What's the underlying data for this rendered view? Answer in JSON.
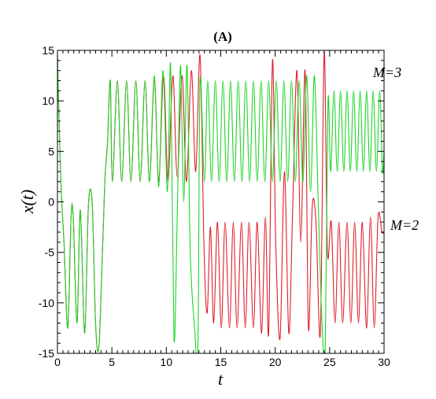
{
  "chart_data": {
    "type": "line",
    "title": "(A)",
    "xlabel": "t",
    "ylabel": "x(t)",
    "xlim": [
      0,
      30
    ],
    "ylim": [
      -15,
      15
    ],
    "xticks": [
      0,
      5,
      10,
      15,
      20,
      25,
      30
    ],
    "yticks": [
      -15,
      -10,
      -5,
      0,
      5,
      10,
      15
    ],
    "grid": false,
    "series": [
      {
        "name": "M=2",
        "color": "#dd1f2a",
        "x": [
          0,
          0.15,
          0.35,
          0.6,
          0.95,
          1.25,
          1.45,
          1.8,
          2.1,
          2.5,
          2.85,
          3.2,
          3.5,
          3.8,
          4.1,
          4.35,
          4.6,
          4.85,
          5.05,
          5.5,
          5.9,
          6.35,
          6.75,
          7.2,
          7.6,
          8.05,
          8.45,
          8.9,
          9.3,
          9.75,
          10.15,
          10.6,
          11.0,
          11.45,
          11.85,
          12.3,
          12.7,
          13.1,
          13.45,
          13.75,
          14.05,
          14.35,
          14.7,
          15.05,
          15.4,
          15.8,
          16.15,
          16.5,
          16.9,
          17.25,
          17.6,
          18.0,
          18.35,
          18.75,
          19.1,
          19.4,
          19.75,
          20.05,
          20.45,
          20.85,
          21.25,
          21.6,
          22.0,
          22.35,
          22.75,
          23.05,
          23.4,
          23.75,
          24.15,
          24.5,
          24.8,
          25.15,
          25.5,
          25.85,
          26.2,
          26.6,
          26.95,
          27.3,
          27.65,
          28.0,
          28.4,
          28.75,
          29.1,
          29.45,
          29.8,
          30.0
        ],
        "y": [
          14.5,
          8,
          1,
          -4,
          -12.5,
          -1.5,
          -1.5,
          -12,
          -0.8,
          -13,
          -0.2,
          -0.3,
          -12,
          -14.5,
          -6,
          2,
          6,
          12,
          2,
          12,
          2,
          12,
          2,
          12,
          2,
          12,
          2,
          12,
          2,
          12.5,
          2,
          12.5,
          2.5,
          12.5,
          2,
          13,
          3,
          14.5,
          -4,
          -11,
          -2.5,
          -12,
          -2,
          -12.5,
          -2,
          -12.5,
          -2,
          -12.5,
          -2,
          -12.5,
          -2,
          -12.5,
          -2,
          -13,
          -1.5,
          -13,
          14,
          -4,
          -13.5,
          3,
          -13,
          -1,
          13,
          -4,
          13,
          -12.5,
          -0.5,
          -2,
          -13,
          14.8,
          -5,
          -2,
          -12,
          -2,
          -12,
          -2,
          -12,
          -2,
          -12,
          -2,
          -12.5,
          -1.5,
          -12.5,
          -1.5,
          -3,
          -3
        ]
      },
      {
        "name": "M=3",
        "color": "#1ed427",
        "x": [
          0,
          0.15,
          0.35,
          0.6,
          0.95,
          1.25,
          1.45,
          1.8,
          2.1,
          2.5,
          2.85,
          3.2,
          3.5,
          3.8,
          4.1,
          4.35,
          4.6,
          4.85,
          5.05,
          5.5,
          5.9,
          6.35,
          6.75,
          7.2,
          7.6,
          8.05,
          8.45,
          8.9,
          9.3,
          9.7,
          10.1,
          10.4,
          10.7,
          11.0,
          11.3,
          11.6,
          11.9,
          12.2,
          12.6,
          12.9,
          13.1,
          13.5,
          13.8,
          14.15,
          14.5,
          14.85,
          15.2,
          15.55,
          15.9,
          16.25,
          16.6,
          16.95,
          17.3,
          17.65,
          18.0,
          18.35,
          18.7,
          19.05,
          19.4,
          19.75,
          20.1,
          20.45,
          20.8,
          21.15,
          21.5,
          21.85,
          22.2,
          22.55,
          22.9,
          23.25,
          23.6,
          23.95,
          24.3,
          24.6,
          24.85,
          25.1,
          25.4,
          25.7,
          26.0,
          26.3,
          26.6,
          26.9,
          27.2,
          27.5,
          27.8,
          28.1,
          28.4,
          28.7,
          29.0,
          29.3,
          29.6,
          29.85,
          30.0
        ],
        "y": [
          14.5,
          8,
          1,
          -4,
          -12.5,
          -1.5,
          -1.5,
          -12,
          -0.8,
          -13,
          -0.2,
          -0.3,
          -12,
          -14.5,
          -6,
          2,
          6,
          12,
          2,
          12,
          2,
          12,
          2,
          12,
          2,
          12,
          2,
          12.5,
          1.5,
          13,
          1,
          13.5,
          -13.5,
          -1.5,
          13.5,
          0,
          13.5,
          -5,
          -12.5,
          -14.5,
          12,
          2,
          12,
          2,
          12,
          2,
          12,
          2,
          12,
          2,
          12,
          2,
          12,
          2,
          12,
          2,
          12,
          2,
          12,
          2,
          12,
          2,
          12,
          2,
          12,
          2,
          12,
          2,
          12.5,
          1,
          12.5,
          0,
          -12,
          -14.5,
          10,
          3,
          11,
          3,
          11,
          3,
          11,
          3,
          11,
          3,
          11,
          3,
          11,
          3,
          11,
          3,
          11,
          3,
          5
        ]
      }
    ]
  }
}
